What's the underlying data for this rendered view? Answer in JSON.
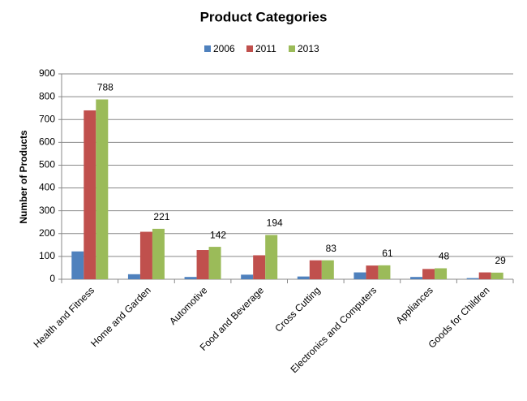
{
  "chart_data": {
    "type": "bar",
    "title": "Product Categories",
    "y_label": "Number of Products",
    "categories": [
      "Health and Fitness",
      "Home and Garden",
      "Automotive",
      "Food and Beverage",
      "Cross Cutting",
      "Electronics and Computers",
      "Appliances",
      "Goods for Children"
    ],
    "series": [
      {
        "name": "2006",
        "color": "#4f81bd",
        "values": [
          122,
          22,
          10,
          20,
          12,
          30,
          10,
          5
        ]
      },
      {
        "name": "2011",
        "color": "#c0504d",
        "values": [
          740,
          208,
          128,
          105,
          83,
          60,
          45,
          30
        ]
      },
      {
        "name": "2013",
        "color": "#9bbb59",
        "values": [
          788,
          221,
          142,
          194,
          83,
          61,
          48,
          29
        ],
        "show_labels": true
      }
    ],
    "ylim": [
      0,
      900
    ],
    "yticks": [
      0,
      100,
      200,
      300,
      400,
      500,
      600,
      700,
      800,
      900
    ],
    "grid": true,
    "legend": "top"
  }
}
